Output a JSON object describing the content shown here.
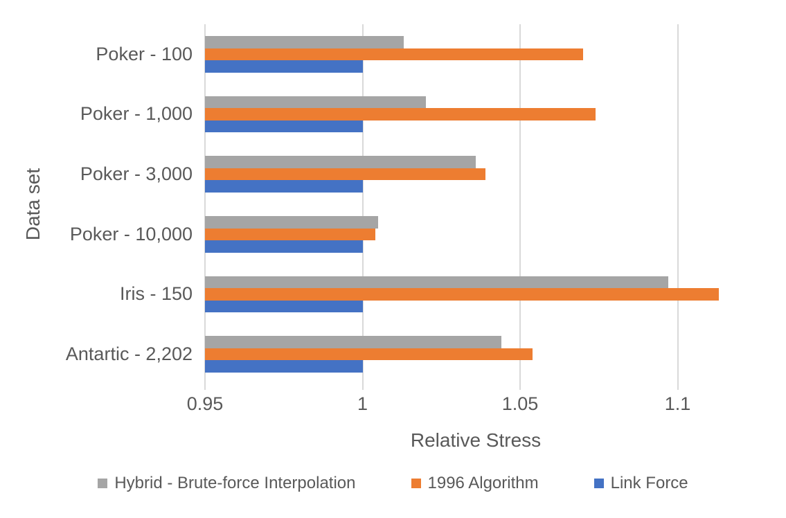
{
  "chart_data": {
    "type": "bar",
    "orientation": "horizontal",
    "xlabel": "Relative Stress",
    "ylabel": "Data set",
    "categories": [
      "Poker - 100",
      "Poker - 1,000",
      "Poker - 3,000",
      "Poker - 10,000",
      "Iris - 150",
      "Antartic - 2,202"
    ],
    "series": [
      {
        "name": "Hybrid - Brute-force Interpolation",
        "color": "#A5A5A5",
        "values": [
          1.013,
          1.02,
          1.036,
          1.005,
          1.097,
          1.044
        ]
      },
      {
        "name": "1996 Algorithm",
        "color": "#ED7D31",
        "values": [
          1.07,
          1.074,
          1.039,
          1.004,
          1.113,
          1.054
        ]
      },
      {
        "name": "Link Force",
        "color": "#4472C4",
        "values": [
          1.0,
          1.0,
          1.0,
          1.0,
          1.0,
          1.0
        ]
      }
    ],
    "x_axis": {
      "min": 0.95,
      "max": 1.127,
      "ticks": [
        0.95,
        1.0,
        1.05,
        1.1
      ],
      "tick_labels": [
        "0.95",
        "1",
        "1.05",
        "1.1"
      ]
    },
    "grid": true,
    "legend_position": "bottom",
    "bar_order_note": "Within each category, bars top-to-bottom match legend order left-to-right"
  },
  "colors": {
    "background": "#FFFFFF",
    "gridline": "#D9D9D9",
    "text": "#595959",
    "series_gray": "#A5A5A5",
    "series_orange": "#ED7D31",
    "series_blue": "#4472C4"
  }
}
